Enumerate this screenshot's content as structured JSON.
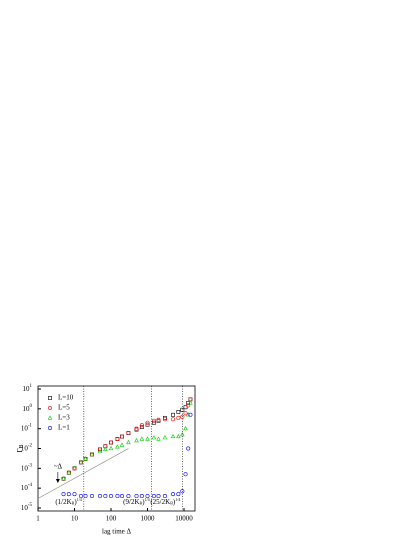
{
  "chart_data": {
    "type": "scatter",
    "log_x": true,
    "log_y": true,
    "xlabel": "lag time Δ",
    "ylabel": "Γ",
    "ylabel_sub": "B",
    "xlim": [
      1,
      20000
    ],
    "ylim": [
      1e-05,
      10
    ],
    "xticks": [
      1,
      10,
      100,
      1000,
      10000
    ],
    "yticks": [
      {
        "value": 1e-05,
        "label": "10",
        "sup": "-5"
      },
      {
        "value": 0.0001,
        "label": "10",
        "sup": "-4"
      },
      {
        "value": 0.001,
        "label": "10",
        "sup": "-3"
      },
      {
        "value": 0.01,
        "label": "10",
        "sup": "-2"
      },
      {
        "value": 0.1,
        "label": "10",
        "sup": "-1"
      },
      {
        "value": 1,
        "label": "10",
        "sup": "0"
      },
      {
        "value": 10,
        "label": "10",
        "sup": "1"
      }
    ],
    "x": [
      5,
      7,
      10,
      15,
      20,
      30,
      50,
      70,
      100,
      150,
      200,
      300,
      500,
      700,
      1000,
      1500,
      2000,
      3000,
      5000,
      7000,
      9000,
      11000,
      13000,
      15000
    ],
    "series": [
      {
        "name": "L=10",
        "color": "#000000",
        "marker": "square",
        "values": [
          0.0003,
          0.0006,
          0.001,
          0.002,
          0.003,
          0.005,
          0.009,
          0.013,
          0.02,
          0.03,
          0.04,
          0.06,
          0.09,
          0.12,
          0.16,
          0.2,
          0.25,
          0.35,
          0.5,
          0.7,
          0.9,
          1.2,
          2,
          3
        ]
      },
      {
        "name": "L=5",
        "color": "#ff0000",
        "marker": "circle",
        "values": [
          0.0003,
          0.0006,
          0.001,
          0.002,
          0.003,
          0.005,
          0.009,
          0.013,
          0.02,
          0.03,
          0.04,
          0.06,
          0.1,
          0.15,
          0.2,
          0.25,
          0.28,
          0.3,
          0.3,
          0.35,
          0.4,
          0.6,
          1.5,
          3
        ]
      },
      {
        "name": "L=3",
        "color": "#00cc00",
        "marker": "triangle",
        "values": [
          0.0003,
          0.0006,
          0.001,
          0.002,
          0.003,
          0.005,
          0.007,
          0.009,
          0.01,
          0.012,
          0.015,
          0.02,
          0.025,
          0.03,
          0.03,
          0.035,
          0.03,
          0.035,
          0.04,
          0.04,
          0.05,
          0.1,
          0.5,
          2
        ]
      },
      {
        "name": "L=1",
        "color": "#0000ff",
        "marker": "circle",
        "values": [
          5e-05,
          5e-05,
          5e-05,
          4e-05,
          4e-05,
          4e-05,
          4e-05,
          4e-05,
          4e-05,
          4e-05,
          4e-05,
          4e-05,
          4e-05,
          4e-05,
          4e-05,
          4e-05,
          4e-05,
          4e-05,
          5e-05,
          5e-05,
          7e-05,
          0.0005,
          0.01,
          0.5
        ]
      }
    ],
    "guide": {
      "label": "~Δ",
      "arrow_x": 3.5,
      "x": [
        1,
        300
      ],
      "values": [
        3e-05,
        0.01
      ]
    },
    "vlines": [
      18,
      1300,
      9000
    ],
    "vline_labels": [
      {
        "text": "(1/2K",
        "sub": "B",
        "tail": ")",
        "sup": "1/4"
      },
      {
        "text": "(9/2K",
        "sub": "B",
        "tail": ")",
        "sup": "1/4"
      },
      {
        "text": "(25/2K",
        "sub": "B",
        "tail": ")",
        "sup": "1/4"
      }
    ],
    "legend": "upper-left"
  }
}
